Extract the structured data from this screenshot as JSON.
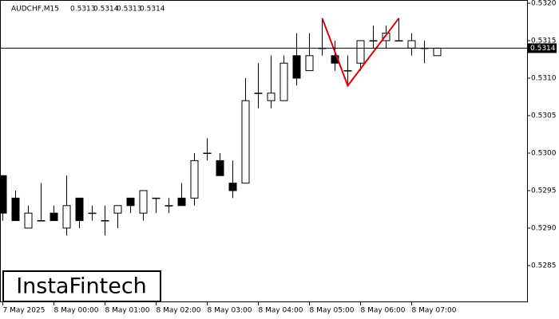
{
  "chart_data": {
    "type": "candlestick",
    "symbol": "AUDCHF,M15",
    "header_ohlc": [
      0.5313,
      0.5314,
      0.5313,
      0.5314
    ],
    "categories": [
      "7 May 2025",
      null,
      null,
      null,
      "8 May 00:00",
      null,
      null,
      null,
      "8 May 01:00",
      null,
      null,
      null,
      "8 May 02:00",
      null,
      null,
      null,
      "8 May 03:00",
      null,
      null,
      null,
      "8 May 04:00",
      null,
      null,
      null,
      "8 May 05:00",
      null,
      null,
      null,
      "8 May 06:00",
      null,
      null,
      null,
      "8 May 07:00",
      null,
      null
    ],
    "open": [
      0.5297,
      0.5294,
      0.529,
      0.5291,
      0.5292,
      0.529,
      0.5294,
      0.5292,
      0.5291,
      0.5292,
      0.5294,
      0.5292,
      0.5294,
      0.5293,
      0.5294,
      0.5294,
      0.53,
      0.5299,
      0.5296,
      0.5296,
      0.5308,
      0.5307,
      0.5307,
      0.5313,
      0.5311,
      0.5314,
      0.5313,
      0.5311,
      0.5312,
      0.5315,
      0.5315,
      0.5315,
      0.5314,
      0.5314,
      0.5313
    ],
    "high": [
      0.5297,
      0.5295,
      0.5293,
      0.5296,
      0.5293,
      0.5297,
      0.5294,
      0.5293,
      0.5293,
      0.5293,
      0.5294,
      0.5295,
      0.5294,
      0.5294,
      0.5296,
      0.53,
      0.5302,
      0.53,
      0.5299,
      0.531,
      0.5312,
      0.5313,
      0.5313,
      0.5316,
      0.5316,
      0.5318,
      0.5315,
      0.5313,
      0.5315,
      0.5317,
      0.5317,
      0.5318,
      0.5316,
      0.5315,
      0.5314
    ],
    "low": [
      0.5291,
      0.5291,
      0.529,
      0.5291,
      0.5291,
      0.5289,
      0.529,
      0.5291,
      0.5289,
      0.529,
      0.5292,
      0.5291,
      0.5292,
      0.5292,
      0.5293,
      0.5293,
      0.5299,
      0.5297,
      0.5294,
      0.5296,
      0.5306,
      0.5306,
      0.5307,
      0.5309,
      0.5311,
      0.5313,
      0.5311,
      0.5309,
      0.5311,
      0.5314,
      0.5314,
      0.5315,
      0.5313,
      0.5312,
      0.5313
    ],
    "close": [
      0.5292,
      0.5291,
      0.5292,
      0.5291,
      0.5291,
      0.5293,
      0.5291,
      0.5292,
      0.5291,
      0.5293,
      0.5293,
      0.5295,
      0.5294,
      0.5293,
      0.5293,
      0.5299,
      0.53,
      0.5297,
      0.5295,
      0.5307,
      0.5308,
      0.5308,
      0.5312,
      0.531,
      0.5313,
      0.5314,
      0.5312,
      0.5311,
      0.5315,
      0.5315,
      0.5316,
      0.5315,
      0.5315,
      0.5314,
      0.5314
    ],
    "up_color": "#ffffff",
    "down_color": "#000000",
    "ylim": [
      0.528,
      0.532
    ],
    "yticks": [
      {
        "value": 0.5285,
        "label": "0.5285"
      },
      {
        "value": 0.529,
        "label": "0.5290"
      },
      {
        "value": 0.5295,
        "label": "0.5295"
      },
      {
        "value": 0.53,
        "label": "0.5300"
      },
      {
        "value": 0.5305,
        "label": "0.5305"
      },
      {
        "value": 0.531,
        "label": "0.5310"
      },
      {
        "value": 0.5315,
        "label": "0.5315"
      },
      {
        "value": 0.532,
        "label": "0.5320"
      }
    ],
    "current_price": 0.5314,
    "pattern": {
      "color": "#e00000",
      "points": [
        {
          "candle": 25,
          "value": 0.5318
        },
        {
          "candle": 27,
          "value": 0.5309
        },
        {
          "candle": 31,
          "value": 0.5318
        }
      ]
    },
    "logo": "InstaFintech"
  }
}
